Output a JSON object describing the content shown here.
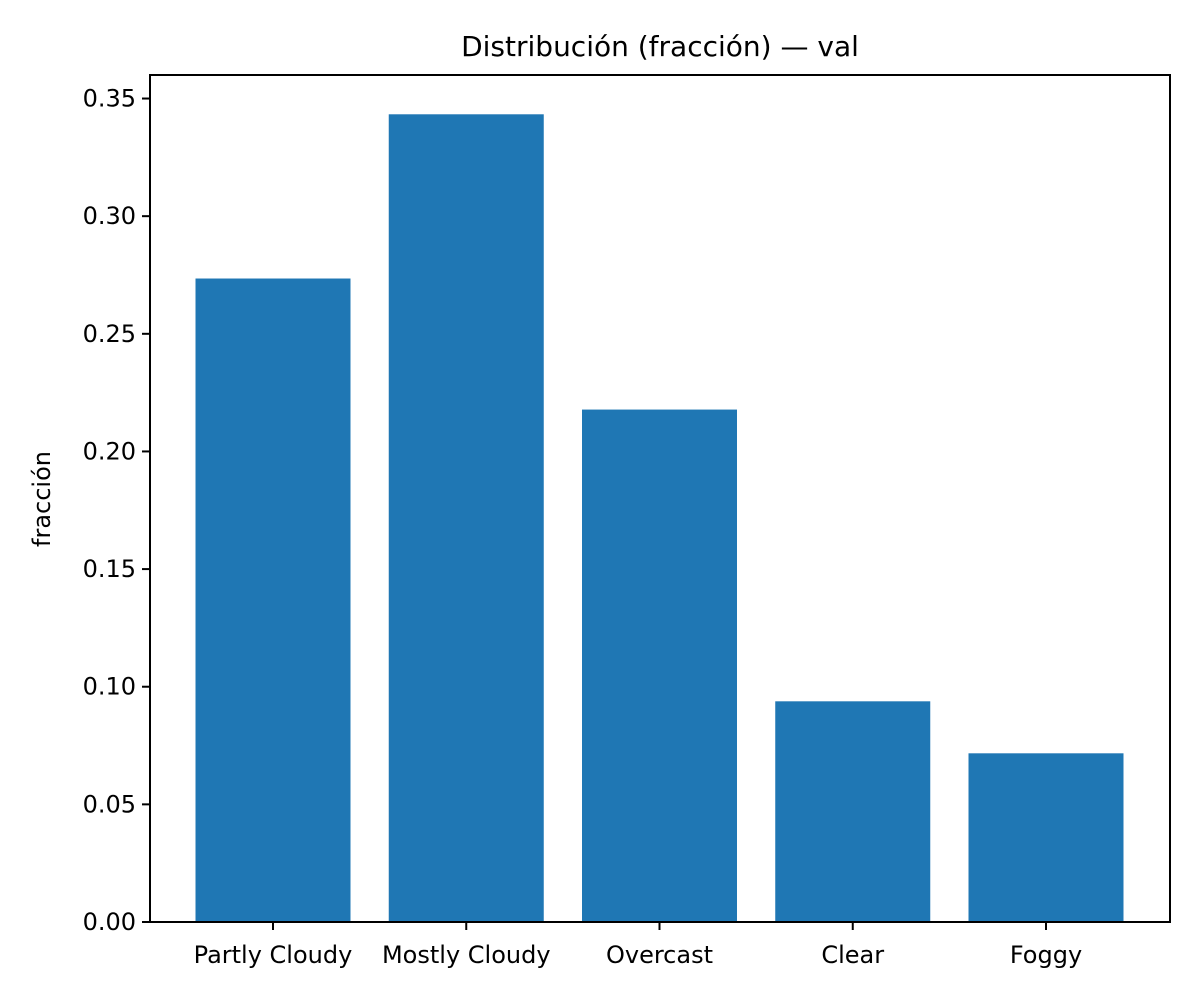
{
  "chart_data": {
    "type": "bar",
    "title": "Distribución (fracción) — val",
    "xlabel": "",
    "ylabel": "fracción",
    "categories": [
      "Partly Cloudy",
      "Mostly Cloudy",
      "Overcast",
      "Clear",
      "Foggy"
    ],
    "values": [
      0.2735,
      0.3433,
      0.2178,
      0.0938,
      0.0717
    ],
    "ylim": [
      0,
      0.36
    ],
    "yticks": [
      0.0,
      0.05,
      0.1,
      0.15,
      0.2,
      0.25,
      0.3,
      0.35
    ],
    "ytick_labels": [
      "0.00",
      "0.05",
      "0.10",
      "0.15",
      "0.20",
      "0.25",
      "0.30",
      "0.35"
    ],
    "grid": false,
    "legend": "none",
    "bar_color": "#1f77b4"
  }
}
